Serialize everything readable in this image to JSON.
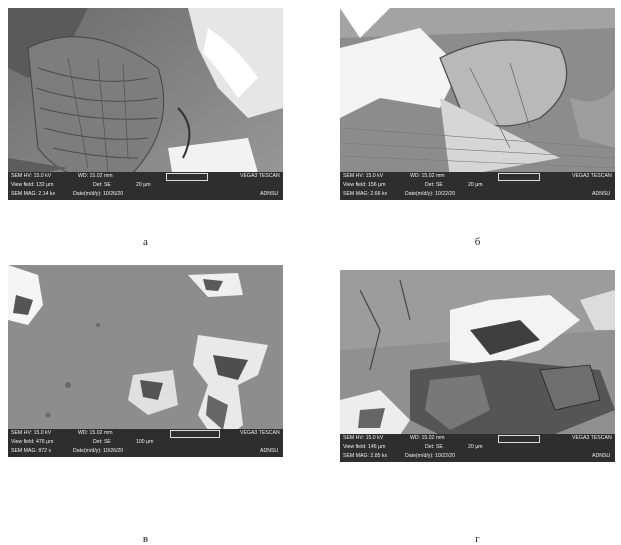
{
  "panels": [
    {
      "caption": "а",
      "hv": "SEM HV: 15.0 kV",
      "wd": "WD: 15.02 mm",
      "view_field": "View field: 132 µm",
      "det": "Det: SE",
      "scale": "20 µm",
      "mag": "SEM MAG: 2.14 kx",
      "date": "Date(m/d/y): 10/26/20",
      "brand": "VEGA3 TESCAN",
      "lab": "ADNSU"
    },
    {
      "caption": "б",
      "hv": "SEM HV: 15.0 kV",
      "wd": "WD: 15.02 mm",
      "view_field": "View field: 156 µm",
      "det": "Det: SE",
      "scale": "20 µm",
      "mag": "SEM MAG: 2.66 kx",
      "date": "Date(m/d/y): 10/22/20",
      "brand": "VEGA3 TESCAN",
      "lab": "ADNSU"
    },
    {
      "caption": "в",
      "hv": "SEM HV: 15.0 kV",
      "wd": "WD: 15.02 mm",
      "view_field": "View field: 476 µm",
      "det": "Det: SE",
      "scale": "100 µm",
      "mag": "SEM MAG: 872 x",
      "date": "Date(m/d/y): 10/26/20",
      "brand": "VEGA3 TESCAN",
      "lab": "ADNSU"
    },
    {
      "caption": "г",
      "hv": "SEM HV: 15.0 kV",
      "wd": "WD: 15.02 mm",
      "view_field": "View field: 146 µm",
      "det": "Det: SE",
      "scale": "20 µm",
      "mag": "SEM MAG: 2.85 kx",
      "date": "Date(m/d/y): 10/22/20",
      "brand": "VEGA3 TESCAN",
      "lab": "ADNSU"
    }
  ]
}
